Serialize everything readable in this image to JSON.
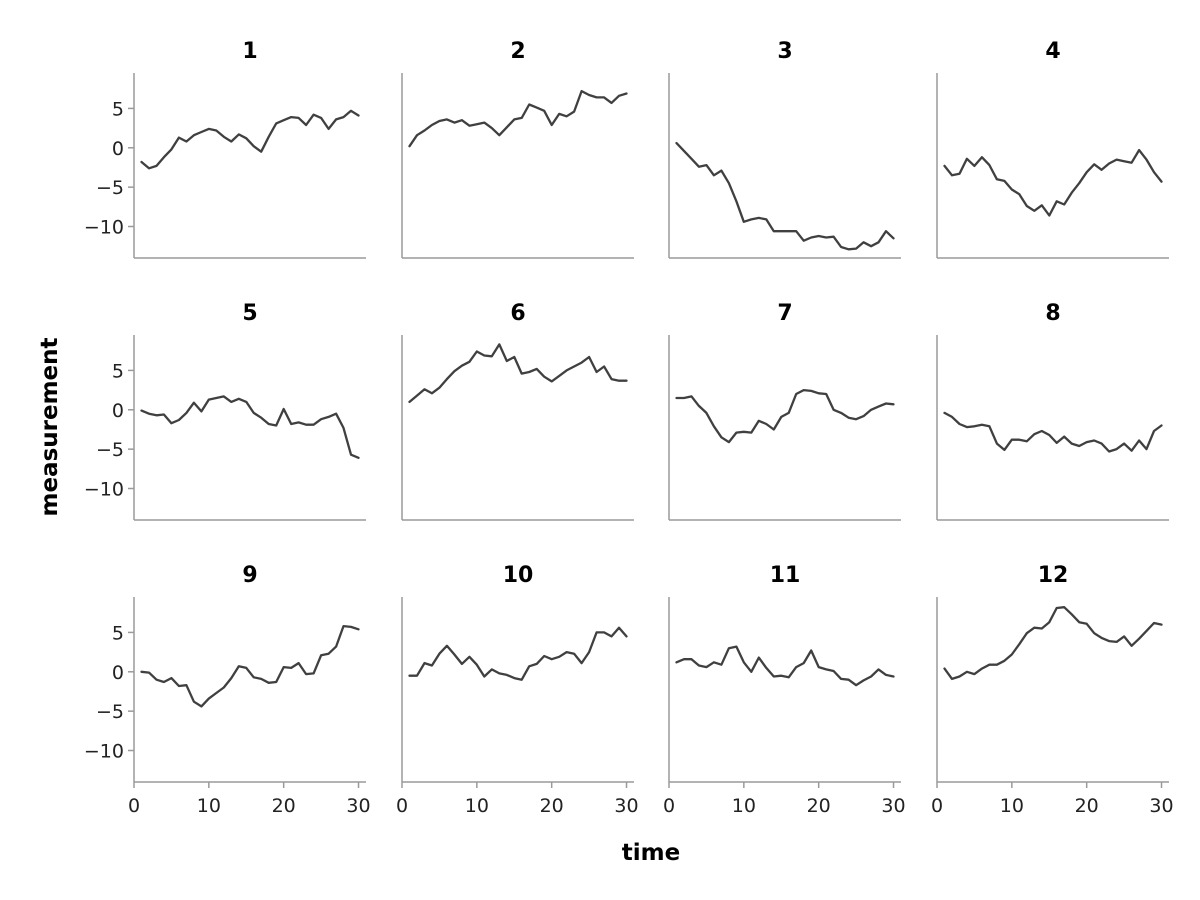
{
  "chart_data": {
    "type": "line",
    "layout": "small-multiples-3x4",
    "xlabel": "time",
    "ylabel": "measurement",
    "xlim": [
      0,
      31
    ],
    "ylim": [
      -14,
      9.5
    ],
    "xticks": [
      "0",
      "10",
      "20",
      "30"
    ],
    "yticks": [
      "5",
      "0",
      "−5",
      "−10"
    ],
    "line_color": "#404040",
    "grid": false,
    "x": [
      1,
      2,
      3,
      4,
      5,
      6,
      7,
      8,
      9,
      10,
      11,
      12,
      13,
      14,
      15,
      16,
      17,
      18,
      19,
      20,
      21,
      22,
      23,
      24,
      25,
      26,
      27,
      28,
      29,
      30
    ],
    "panels": [
      {
        "title": "1",
        "values": [
          -1.8,
          -2.6,
          -2.3,
          -1.2,
          -0.2,
          1.3,
          0.8,
          1.6,
          2.0,
          2.4,
          2.2,
          1.4,
          0.8,
          1.7,
          1.2,
          0.2,
          -0.5,
          1.4,
          3.1,
          3.5,
          3.9,
          3.8,
          2.9,
          4.2,
          3.8,
          2.4,
          3.6,
          3.9,
          4.7,
          4.1
        ]
      },
      {
        "title": "2",
        "values": [
          0.2,
          1.6,
          2.2,
          2.9,
          3.4,
          3.6,
          3.2,
          3.5,
          2.8,
          3.0,
          3.2,
          2.5,
          1.6,
          2.6,
          3.6,
          3.8,
          5.5,
          5.1,
          4.7,
          2.9,
          4.3,
          4.0,
          4.6,
          7.2,
          6.7,
          6.4,
          6.4,
          5.7,
          6.6,
          6.9
        ]
      },
      {
        "title": "3",
        "values": [
          0.6,
          -0.4,
          -1.4,
          -2.4,
          -2.2,
          -3.5,
          -2.9,
          -4.5,
          -6.8,
          -9.4,
          -9.1,
          -8.9,
          -9.1,
          -10.6,
          -10.6,
          -10.6,
          -10.6,
          -11.8,
          -11.4,
          -11.2,
          -11.4,
          -11.3,
          -12.6,
          -12.9,
          -12.8,
          -12.0,
          -12.5,
          -12.0,
          -10.6,
          -11.5
        ]
      },
      {
        "title": "4",
        "values": [
          -2.3,
          -3.5,
          -3.3,
          -1.4,
          -2.3,
          -1.2,
          -2.2,
          -4.0,
          -4.2,
          -5.3,
          -5.9,
          -7.4,
          -8.0,
          -7.3,
          -8.6,
          -6.8,
          -7.2,
          -5.7,
          -4.5,
          -3.1,
          -2.1,
          -2.8,
          -2.0,
          -1.5,
          -1.7,
          -1.9,
          -0.3,
          -1.5,
          -3.1,
          -4.3
        ]
      },
      {
        "title": "5",
        "values": [
          -0.1,
          -0.5,
          -0.7,
          -0.6,
          -1.7,
          -1.3,
          -0.4,
          0.9,
          -0.2,
          1.3,
          1.5,
          1.7,
          1.0,
          1.4,
          1.0,
          -0.4,
          -1.0,
          -1.8,
          -2.0,
          0.1,
          -1.8,
          -1.6,
          -1.9,
          -1.9,
          -1.2,
          -0.9,
          -0.5,
          -2.3,
          -5.7,
          -6.1
        ]
      },
      {
        "title": "6",
        "values": [
          1.0,
          1.8,
          2.6,
          2.1,
          2.8,
          3.9,
          4.9,
          5.6,
          6.1,
          7.4,
          6.9,
          6.8,
          8.3,
          6.2,
          6.7,
          4.6,
          4.8,
          5.2,
          4.2,
          3.6,
          4.3,
          5.0,
          5.5,
          6.0,
          6.7,
          4.8,
          5.5,
          3.9,
          3.7,
          3.7
        ]
      },
      {
        "title": "7",
        "values": [
          1.5,
          1.5,
          1.7,
          0.5,
          -0.4,
          -2.1,
          -3.5,
          -4.1,
          -2.9,
          -2.8,
          -2.9,
          -1.4,
          -1.8,
          -2.5,
          -0.9,
          -0.4,
          2.0,
          2.5,
          2.4,
          2.1,
          2.0,
          0.0,
          -0.4,
          -1.0,
          -1.2,
          -0.8,
          0.0,
          0.4,
          0.8,
          0.7
        ]
      },
      {
        "title": "8",
        "values": [
          -0.4,
          -0.9,
          -1.8,
          -2.2,
          -2.1,
          -1.9,
          -2.1,
          -4.3,
          -5.1,
          -3.8,
          -3.8,
          -4.0,
          -3.1,
          -2.7,
          -3.2,
          -4.2,
          -3.4,
          -4.3,
          -4.6,
          -4.1,
          -3.9,
          -4.3,
          -5.3,
          -5.0,
          -4.3,
          -5.2,
          -3.9,
          -5.0,
          -2.7,
          -2.0
        ]
      },
      {
        "title": "9",
        "values": [
          0.0,
          -0.1,
          -1.0,
          -1.3,
          -0.8,
          -1.8,
          -1.7,
          -3.8,
          -4.4,
          -3.4,
          -2.7,
          -2.0,
          -0.8,
          0.7,
          0.5,
          -0.7,
          -0.9,
          -1.4,
          -1.3,
          0.6,
          0.5,
          1.1,
          -0.3,
          -0.2,
          2.1,
          2.3,
          3.2,
          5.8,
          5.7,
          5.4
        ]
      },
      {
        "title": "10",
        "values": [
          -0.5,
          -0.5,
          1.1,
          0.8,
          2.3,
          3.3,
          2.2,
          1.0,
          1.9,
          0.9,
          -0.6,
          0.3,
          -0.2,
          -0.4,
          -0.8,
          -1.0,
          0.7,
          1.0,
          2.0,
          1.6,
          1.9,
          2.5,
          2.3,
          1.1,
          2.5,
          5.0,
          5.0,
          4.5,
          5.6,
          4.5
        ]
      },
      {
        "title": "11",
        "values": [
          1.2,
          1.6,
          1.6,
          0.8,
          0.6,
          1.2,
          0.9,
          3.0,
          3.2,
          1.2,
          0.0,
          1.8,
          0.5,
          -0.6,
          -0.5,
          -0.7,
          0.6,
          1.1,
          2.7,
          0.6,
          0.3,
          0.1,
          -0.9,
          -1.0,
          -1.7,
          -1.1,
          -0.6,
          0.3,
          -0.4,
          -0.6
        ]
      },
      {
        "title": "12",
        "values": [
          0.4,
          -0.9,
          -0.6,
          0.0,
          -0.3,
          0.4,
          0.9,
          0.9,
          1.4,
          2.2,
          3.5,
          4.9,
          5.6,
          5.5,
          6.3,
          8.1,
          8.2,
          7.3,
          6.3,
          6.1,
          4.9,
          4.3,
          3.9,
          3.8,
          4.5,
          3.3,
          4.2,
          5.2,
          6.2,
          6.0
        ]
      }
    ]
  }
}
